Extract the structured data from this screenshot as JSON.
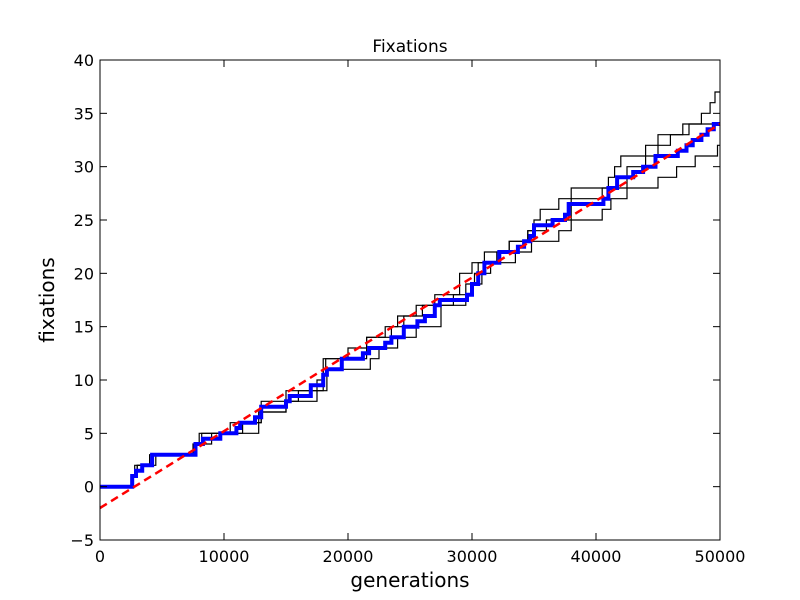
{
  "chart_data": {
    "type": "line",
    "title": "Fixations",
    "xlabel": "generations",
    "ylabel": "fixations",
    "xlim": [
      0,
      50000
    ],
    "ylim": [
      -5,
      40
    ],
    "xticks": [
      0,
      10000,
      20000,
      30000,
      40000,
      50000
    ],
    "yticks": [
      -5,
      0,
      5,
      10,
      15,
      20,
      25,
      30,
      35,
      40
    ],
    "xtick_labels": [
      "0",
      "10000",
      "20000",
      "30000",
      "40000",
      "50000"
    ],
    "ytick_labels": [
      "−5",
      "0",
      "5",
      "10",
      "15",
      "20",
      "25",
      "30",
      "35",
      "40"
    ],
    "grid": false,
    "legend": "none",
    "series": [
      {
        "style": "step",
        "color": "#000000",
        "points": [
          [
            0,
            0
          ],
          [
            2600,
            0
          ],
          [
            2600,
            1
          ],
          [
            3000,
            1
          ],
          [
            3000,
            2
          ],
          [
            4200,
            2
          ],
          [
            4200,
            3
          ],
          [
            7700,
            3
          ],
          [
            7700,
            4
          ],
          [
            8200,
            4
          ],
          [
            8200,
            5
          ],
          [
            10000,
            5
          ],
          [
            10000,
            5
          ],
          [
            11500,
            5
          ],
          [
            11500,
            6
          ],
          [
            13000,
            6
          ],
          [
            13000,
            7
          ],
          [
            15000,
            7
          ],
          [
            15000,
            8
          ],
          [
            16000,
            8
          ],
          [
            16000,
            9
          ],
          [
            18000,
            9
          ],
          [
            18000,
            11
          ],
          [
            18200,
            11
          ],
          [
            18200,
            12
          ],
          [
            20000,
            12
          ],
          [
            20000,
            13
          ],
          [
            21500,
            13
          ],
          [
            21500,
            14
          ],
          [
            23000,
            14
          ],
          [
            23000,
            15
          ],
          [
            24000,
            15
          ],
          [
            24000,
            16
          ],
          [
            26000,
            16
          ],
          [
            26000,
            17
          ],
          [
            28500,
            17
          ],
          [
            28500,
            18
          ],
          [
            29500,
            18
          ],
          [
            29500,
            19
          ],
          [
            30200,
            19
          ],
          [
            30200,
            20
          ],
          [
            30500,
            20
          ],
          [
            30500,
            21
          ],
          [
            32000,
            21
          ],
          [
            32000,
            22
          ],
          [
            33000,
            22
          ],
          [
            33000,
            23
          ],
          [
            34500,
            23
          ],
          [
            34500,
            24
          ],
          [
            35000,
            24
          ],
          [
            35000,
            25
          ],
          [
            35500,
            25
          ],
          [
            35500,
            26
          ],
          [
            37000,
            26
          ],
          [
            37000,
            27
          ],
          [
            38000,
            27
          ],
          [
            38000,
            28
          ],
          [
            41000,
            28
          ],
          [
            41000,
            29
          ],
          [
            41500,
            29
          ],
          [
            41500,
            30
          ],
          [
            42000,
            30
          ],
          [
            42000,
            31
          ],
          [
            44000,
            31
          ],
          [
            44000,
            32
          ],
          [
            45000,
            32
          ],
          [
            45000,
            33
          ],
          [
            47000,
            33
          ],
          [
            47000,
            34
          ],
          [
            48500,
            34
          ],
          [
            48500,
            35
          ],
          [
            49200,
            35
          ],
          [
            49200,
            36
          ],
          [
            49600,
            36
          ],
          [
            49600,
            37
          ],
          [
            50000,
            37
          ]
        ]
      },
      {
        "style": "step",
        "color": "#000000",
        "points": [
          [
            0,
            0
          ],
          [
            2600,
            0
          ],
          [
            2600,
            1
          ],
          [
            2800,
            1
          ],
          [
            2800,
            2
          ],
          [
            4000,
            2
          ],
          [
            4000,
            3
          ],
          [
            7500,
            3
          ],
          [
            7500,
            4
          ],
          [
            8000,
            4
          ],
          [
            8000,
            5
          ],
          [
            9500,
            5
          ],
          [
            9500,
            5
          ],
          [
            10500,
            5
          ],
          [
            10500,
            6
          ],
          [
            13000,
            6
          ],
          [
            13000,
            8
          ],
          [
            15000,
            8
          ],
          [
            15000,
            9
          ],
          [
            17500,
            9
          ],
          [
            17500,
            10
          ],
          [
            18000,
            10
          ],
          [
            18000,
            12
          ],
          [
            21500,
            12
          ],
          [
            21500,
            14
          ],
          [
            23500,
            14
          ],
          [
            23500,
            15
          ],
          [
            24500,
            15
          ],
          [
            24500,
            16
          ],
          [
            25500,
            16
          ],
          [
            25500,
            17
          ],
          [
            27000,
            17
          ],
          [
            27000,
            18
          ],
          [
            29000,
            18
          ],
          [
            29000,
            20
          ],
          [
            30000,
            20
          ],
          [
            30000,
            21
          ],
          [
            31000,
            21
          ],
          [
            31000,
            22
          ],
          [
            33000,
            22
          ],
          [
            33000,
            23
          ],
          [
            34500,
            23
          ],
          [
            34500,
            24
          ],
          [
            36000,
            24
          ],
          [
            36000,
            25
          ],
          [
            38000,
            25
          ],
          [
            38000,
            27
          ],
          [
            40500,
            27
          ],
          [
            40500,
            28
          ],
          [
            42500,
            28
          ],
          [
            42500,
            30
          ],
          [
            44000,
            30
          ],
          [
            44000,
            31
          ],
          [
            45000,
            31
          ],
          [
            45000,
            32
          ],
          [
            46000,
            32
          ],
          [
            46000,
            33
          ],
          [
            47500,
            33
          ],
          [
            47500,
            34
          ],
          [
            50000,
            34
          ]
        ]
      },
      {
        "style": "step",
        "color": "#000000",
        "points": [
          [
            0,
            0
          ],
          [
            2500,
            0
          ],
          [
            2500,
            1
          ],
          [
            3000,
            1
          ],
          [
            3000,
            2
          ],
          [
            4500,
            2
          ],
          [
            4500,
            3
          ],
          [
            7800,
            3
          ],
          [
            7800,
            4
          ],
          [
            9000,
            4
          ],
          [
            9000,
            5
          ],
          [
            10500,
            5
          ],
          [
            10500,
            5
          ],
          [
            12800,
            5
          ],
          [
            12800,
            7
          ],
          [
            15000,
            7
          ],
          [
            15000,
            8
          ],
          [
            17500,
            8
          ],
          [
            17500,
            9
          ],
          [
            18300,
            9
          ],
          [
            18300,
            11
          ],
          [
            21800,
            11
          ],
          [
            21800,
            12
          ],
          [
            22500,
            12
          ],
          [
            22500,
            13
          ],
          [
            24000,
            13
          ],
          [
            24000,
            14
          ],
          [
            25500,
            14
          ],
          [
            25500,
            15
          ],
          [
            27500,
            15
          ],
          [
            27500,
            17
          ],
          [
            29500,
            17
          ],
          [
            29500,
            18
          ],
          [
            30000,
            18
          ],
          [
            30000,
            19
          ],
          [
            30800,
            19
          ],
          [
            30800,
            20
          ],
          [
            31500,
            20
          ],
          [
            31500,
            21
          ],
          [
            33500,
            21
          ],
          [
            33500,
            22
          ],
          [
            34800,
            22
          ],
          [
            34800,
            23
          ],
          [
            37000,
            23
          ],
          [
            37000,
            24
          ],
          [
            38000,
            24
          ],
          [
            38000,
            25
          ],
          [
            40500,
            25
          ],
          [
            40500,
            26
          ],
          [
            41200,
            26
          ],
          [
            41200,
            27
          ],
          [
            42500,
            27
          ],
          [
            42500,
            28
          ],
          [
            45000,
            28
          ],
          [
            45000,
            29
          ],
          [
            46500,
            29
          ],
          [
            46500,
            30
          ],
          [
            48000,
            30
          ],
          [
            48000,
            31
          ],
          [
            49800,
            31
          ],
          [
            49800,
            32
          ],
          [
            50000,
            32
          ]
        ]
      },
      {
        "style": "step",
        "color": "#0000ff",
        "points": [
          [
            0,
            0
          ],
          [
            2600,
            0
          ],
          [
            2600,
            1
          ],
          [
            2900,
            1
          ],
          [
            2900,
            1.5
          ],
          [
            3400,
            1.5
          ],
          [
            3400,
            2
          ],
          [
            4200,
            2
          ],
          [
            4200,
            3
          ],
          [
            7700,
            3
          ],
          [
            7700,
            4
          ],
          [
            8300,
            4
          ],
          [
            8300,
            4.5
          ],
          [
            9700,
            4.5
          ],
          [
            9700,
            5
          ],
          [
            11000,
            5
          ],
          [
            11000,
            5.5
          ],
          [
            11300,
            5.5
          ],
          [
            11300,
            6
          ],
          [
            12500,
            6
          ],
          [
            12500,
            6.5
          ],
          [
            13000,
            6.5
          ],
          [
            13000,
            7.5
          ],
          [
            15000,
            7.5
          ],
          [
            15000,
            8
          ],
          [
            15300,
            8
          ],
          [
            15300,
            8.5
          ],
          [
            17000,
            8.5
          ],
          [
            17000,
            9.5
          ],
          [
            18000,
            9.5
          ],
          [
            18000,
            10.5
          ],
          [
            18300,
            10.5
          ],
          [
            18300,
            11
          ],
          [
            19500,
            11
          ],
          [
            19500,
            12
          ],
          [
            21200,
            12
          ],
          [
            21200,
            12.5
          ],
          [
            21700,
            12.5
          ],
          [
            21700,
            13
          ],
          [
            23000,
            13
          ],
          [
            23000,
            13.5
          ],
          [
            23500,
            13.5
          ],
          [
            23500,
            14
          ],
          [
            24500,
            14
          ],
          [
            24500,
            15
          ],
          [
            25600,
            15
          ],
          [
            25600,
            15.5
          ],
          [
            26200,
            15.5
          ],
          [
            26200,
            16
          ],
          [
            27000,
            16
          ],
          [
            27000,
            17
          ],
          [
            27400,
            17
          ],
          [
            27400,
            17.5
          ],
          [
            29600,
            17.5
          ],
          [
            29600,
            18
          ],
          [
            30000,
            18
          ],
          [
            30000,
            19
          ],
          [
            30500,
            19
          ],
          [
            30500,
            20
          ],
          [
            31000,
            20
          ],
          [
            31000,
            21
          ],
          [
            32200,
            21
          ],
          [
            32200,
            22
          ],
          [
            33700,
            22
          ],
          [
            33700,
            22.5
          ],
          [
            34200,
            22.5
          ],
          [
            34200,
            23
          ],
          [
            34700,
            23
          ],
          [
            34700,
            23.5
          ],
          [
            35000,
            23.5
          ],
          [
            35000,
            24.5
          ],
          [
            36500,
            24.5
          ],
          [
            36500,
            25
          ],
          [
            37500,
            25
          ],
          [
            37500,
            25.5
          ],
          [
            37800,
            25.5
          ],
          [
            37800,
            26.5
          ],
          [
            40600,
            26.5
          ],
          [
            40600,
            27
          ],
          [
            41000,
            27
          ],
          [
            41000,
            28
          ],
          [
            41700,
            28
          ],
          [
            41700,
            29
          ],
          [
            43000,
            29
          ],
          [
            43000,
            29.5
          ],
          [
            43800,
            29.5
          ],
          [
            43800,
            30
          ],
          [
            44800,
            30
          ],
          [
            44800,
            31
          ],
          [
            46600,
            31
          ],
          [
            46600,
            31.5
          ],
          [
            47300,
            31.5
          ],
          [
            47300,
            32
          ],
          [
            47800,
            32
          ],
          [
            47800,
            32.5
          ],
          [
            48500,
            32.5
          ],
          [
            48500,
            33
          ],
          [
            49000,
            33
          ],
          [
            49000,
            33.5
          ],
          [
            49500,
            33.5
          ],
          [
            49500,
            34
          ],
          [
            50000,
            34
          ]
        ]
      },
      {
        "style": "dashed",
        "color": "#ff0000",
        "points": [
          [
            0,
            -2
          ],
          [
            50000,
            34
          ]
        ]
      }
    ]
  }
}
